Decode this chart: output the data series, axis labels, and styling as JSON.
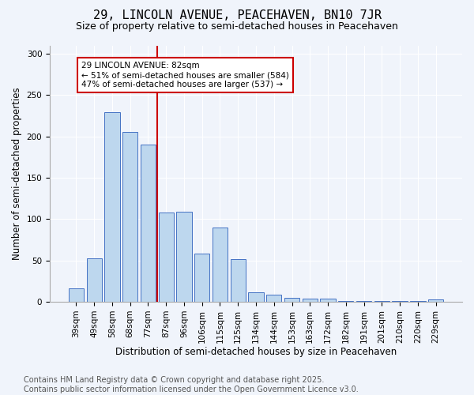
{
  "title": "29, LINCOLN AVENUE, PEACEHAVEN, BN10 7JR",
  "subtitle": "Size of property relative to semi-detached houses in Peacehaven",
  "xlabel": "Distribution of semi-detached houses by size in Peacehaven",
  "ylabel": "Number of semi-detached properties",
  "categories": [
    "39sqm",
    "49sqm",
    "58sqm",
    "68sqm",
    "77sqm",
    "87sqm",
    "96sqm",
    "106sqm",
    "115sqm",
    "125sqm",
    "134sqm",
    "144sqm",
    "153sqm",
    "163sqm",
    "172sqm",
    "182sqm",
    "191sqm",
    "201sqm",
    "210sqm",
    "220sqm",
    "229sqm"
  ],
  "values": [
    16,
    53,
    229,
    205,
    190,
    108,
    109,
    58,
    90,
    52,
    12,
    9,
    5,
    4,
    4,
    1,
    1,
    1,
    1,
    1,
    3
  ],
  "bar_color": "#bdd7ee",
  "bar_edge_color": "#4472c4",
  "vline_color": "#cc0000",
  "annotation_text": "29 LINCOLN AVENUE: 82sqm\n← 51% of semi-detached houses are smaller (584)\n47% of semi-detached houses are larger (537) →",
  "annotation_box_color": "#cc0000",
  "annotation_text_color": "#000000",
  "ylim": [
    0,
    310
  ],
  "yticks": [
    0,
    50,
    100,
    150,
    200,
    250,
    300
  ],
  "footer_line1": "Contains HM Land Registry data © Crown copyright and database right 2025.",
  "footer_line2": "Contains public sector information licensed under the Open Government Licence v3.0.",
  "background_color": "#f0f4fb",
  "plot_bg_color": "#f0f4fb",
  "title_fontsize": 11,
  "subtitle_fontsize": 9,
  "xlabel_fontsize": 8.5,
  "ylabel_fontsize": 8.5,
  "tick_fontsize": 7.5,
  "footer_fontsize": 7,
  "annotation_fontsize": 7.5
}
